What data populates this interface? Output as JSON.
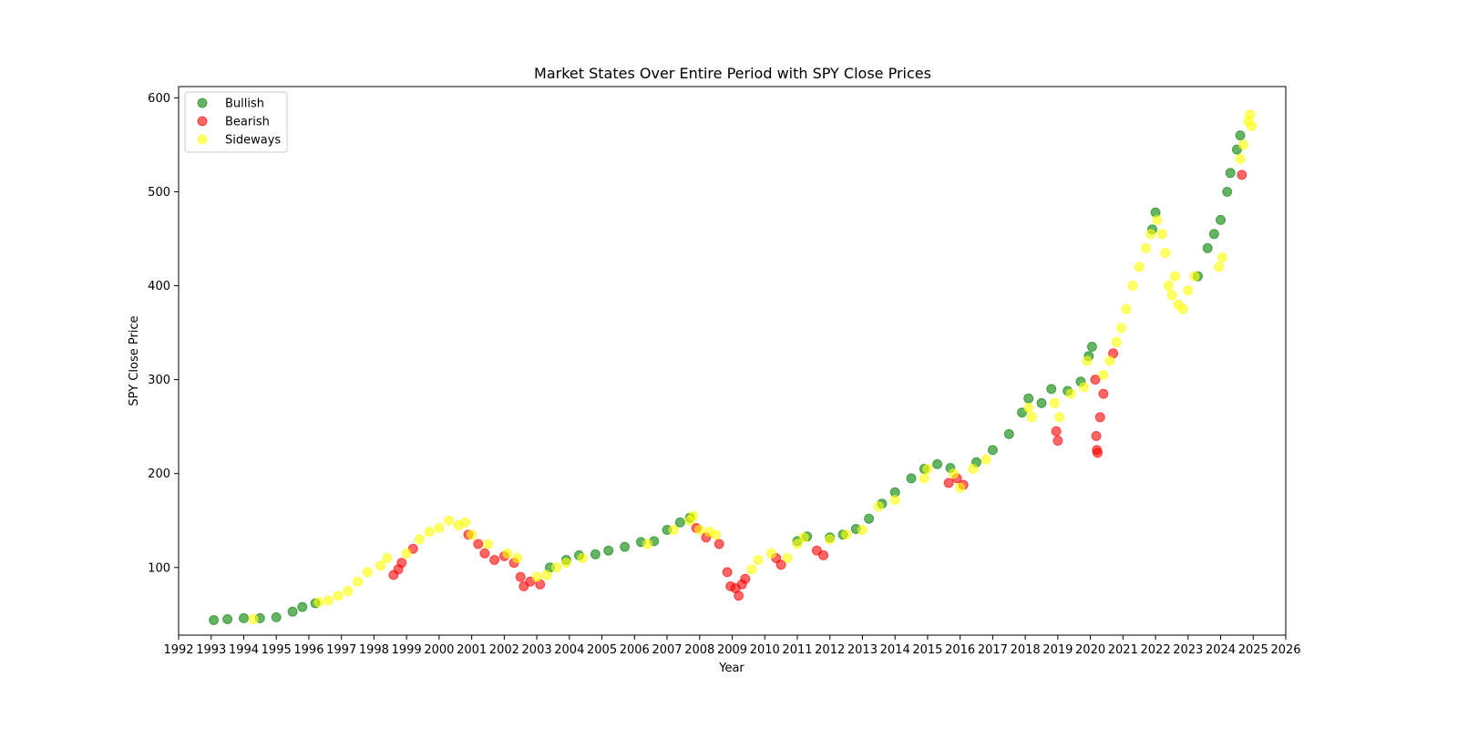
{
  "chart_data": {
    "type": "scatter",
    "title": "Market States Over Entire Period with SPY Close Prices",
    "xlabel": "Year",
    "ylabel": "SPY Close Price",
    "xlim": [
      1992,
      2026
    ],
    "ylim": [
      28,
      612
    ],
    "x_ticks": [
      "1992",
      "1993",
      "1994",
      "1995",
      "1996",
      "1997",
      "1998",
      "1999",
      "2000",
      "2001",
      "2002",
      "2003",
      "2004",
      "2005",
      "2006",
      "2007",
      "2008",
      "2009",
      "2010",
      "2011",
      "2012",
      "2013",
      "2014",
      "2015",
      "2016",
      "2017",
      "2018",
      "2019",
      "2020",
      "2021",
      "2022",
      "2023",
      "2024",
      "2025",
      "2026"
    ],
    "y_ticks": [
      100,
      200,
      300,
      400,
      500,
      600
    ],
    "grid": false,
    "legend_position": "top-left",
    "series": [
      {
        "name": "Bullish",
        "color": "#008000",
        "points": [
          [
            1993.08,
            44
          ],
          [
            1993.5,
            45
          ],
          [
            1994.0,
            46
          ],
          [
            1994.5,
            46
          ],
          [
            1995.0,
            47
          ],
          [
            1995.5,
            53
          ],
          [
            1995.8,
            58
          ],
          [
            1996.2,
            62
          ],
          [
            2003.4,
            100
          ],
          [
            2003.9,
            108
          ],
          [
            2004.3,
            113
          ],
          [
            2004.8,
            114
          ],
          [
            2005.2,
            118
          ],
          [
            2005.7,
            122
          ],
          [
            2006.2,
            127
          ],
          [
            2006.6,
            128
          ],
          [
            2007.0,
            140
          ],
          [
            2007.4,
            148
          ],
          [
            2007.7,
            153
          ],
          [
            2011.0,
            128
          ],
          [
            2011.3,
            133
          ],
          [
            2012.0,
            132
          ],
          [
            2012.4,
            135
          ],
          [
            2012.8,
            141
          ],
          [
            2013.2,
            152
          ],
          [
            2013.6,
            168
          ],
          [
            2014.0,
            180
          ],
          [
            2014.5,
            195
          ],
          [
            2014.9,
            205
          ],
          [
            2015.3,
            210
          ],
          [
            2015.7,
            206
          ],
          [
            2016.5,
            212
          ],
          [
            2017.0,
            225
          ],
          [
            2017.5,
            242
          ],
          [
            2017.9,
            265
          ],
          [
            2018.1,
            280
          ],
          [
            2018.5,
            275
          ],
          [
            2018.8,
            290
          ],
          [
            2019.3,
            288
          ],
          [
            2019.7,
            298
          ],
          [
            2019.95,
            325
          ],
          [
            2020.05,
            335
          ],
          [
            2021.9,
            460
          ],
          [
            2022.0,
            478
          ],
          [
            2023.3,
            410
          ],
          [
            2023.6,
            440
          ],
          [
            2023.8,
            455
          ],
          [
            2024.0,
            470
          ],
          [
            2024.2,
            500
          ],
          [
            2024.3,
            520
          ],
          [
            2024.5,
            545
          ],
          [
            2024.6,
            560
          ]
        ]
      },
      {
        "name": "Bearish",
        "color": "#ff0000",
        "points": [
          [
            1998.6,
            92
          ],
          [
            1998.75,
            98
          ],
          [
            1998.85,
            105
          ],
          [
            1999.2,
            120
          ],
          [
            2000.9,
            135
          ],
          [
            2001.2,
            125
          ],
          [
            2001.4,
            115
          ],
          [
            2001.7,
            108
          ],
          [
            2002.0,
            112
          ],
          [
            2002.3,
            105
          ],
          [
            2002.5,
            90
          ],
          [
            2002.6,
            80
          ],
          [
            2002.8,
            85
          ],
          [
            2003.1,
            82
          ],
          [
            2007.9,
            142
          ],
          [
            2008.2,
            132
          ],
          [
            2008.6,
            125
          ],
          [
            2008.85,
            95
          ],
          [
            2008.95,
            80
          ],
          [
            2009.1,
            78
          ],
          [
            2009.2,
            70
          ],
          [
            2009.3,
            82
          ],
          [
            2009.4,
            88
          ],
          [
            2010.35,
            110
          ],
          [
            2010.5,
            103
          ],
          [
            2011.6,
            118
          ],
          [
            2011.8,
            113
          ],
          [
            2015.65,
            190
          ],
          [
            2015.9,
            195
          ],
          [
            2016.1,
            188
          ],
          [
            2018.95,
            245
          ],
          [
            2019.0,
            235
          ],
          [
            2020.15,
            300
          ],
          [
            2020.18,
            240
          ],
          [
            2020.2,
            225
          ],
          [
            2020.22,
            222
          ],
          [
            2020.3,
            260
          ],
          [
            2020.4,
            285
          ],
          [
            2020.7,
            328
          ],
          [
            2024.65,
            518
          ]
        ]
      },
      {
        "name": "Sideways",
        "color": "#ffff00",
        "points": [
          [
            1994.3,
            45
          ],
          [
            1996.3,
            63
          ],
          [
            1996.6,
            65
          ],
          [
            1996.9,
            70
          ],
          [
            1997.2,
            75
          ],
          [
            1997.5,
            85
          ],
          [
            1997.8,
            95
          ],
          [
            1998.2,
            102
          ],
          [
            1998.4,
            110
          ],
          [
            1999.0,
            115
          ],
          [
            1999.4,
            130
          ],
          [
            1999.7,
            138
          ],
          [
            2000.0,
            142
          ],
          [
            2000.3,
            150
          ],
          [
            2000.6,
            145
          ],
          [
            2000.8,
            148
          ],
          [
            2001.0,
            135
          ],
          [
            2001.5,
            125
          ],
          [
            2002.1,
            115
          ],
          [
            2002.4,
            110
          ],
          [
            2003.0,
            90
          ],
          [
            2003.3,
            92
          ],
          [
            2003.6,
            100
          ],
          [
            2003.9,
            105
          ],
          [
            2004.4,
            110
          ],
          [
            2006.4,
            125
          ],
          [
            2007.2,
            140
          ],
          [
            2007.7,
            150
          ],
          [
            2007.8,
            155
          ],
          [
            2008.0,
            140
          ],
          [
            2008.3,
            138
          ],
          [
            2008.5,
            135
          ],
          [
            2009.6,
            98
          ],
          [
            2009.8,
            108
          ],
          [
            2010.2,
            115
          ],
          [
            2010.7,
            110
          ],
          [
            2011.0,
            125
          ],
          [
            2011.2,
            132
          ],
          [
            2012.0,
            130
          ],
          [
            2012.5,
            135
          ],
          [
            2013.0,
            140
          ],
          [
            2013.5,
            165
          ],
          [
            2014.0,
            172
          ],
          [
            2014.9,
            195
          ],
          [
            2015.0,
            205
          ],
          [
            2015.8,
            200
          ],
          [
            2016.0,
            185
          ],
          [
            2016.4,
            205
          ],
          [
            2016.8,
            215
          ],
          [
            2018.1,
            270
          ],
          [
            2018.2,
            260
          ],
          [
            2018.9,
            275
          ],
          [
            2019.05,
            260
          ],
          [
            2019.4,
            285
          ],
          [
            2019.8,
            292
          ],
          [
            2019.9,
            320
          ],
          [
            2020.4,
            305
          ],
          [
            2020.6,
            320
          ],
          [
            2020.8,
            340
          ],
          [
            2020.95,
            355
          ],
          [
            2021.1,
            375
          ],
          [
            2021.3,
            400
          ],
          [
            2021.5,
            420
          ],
          [
            2021.7,
            440
          ],
          [
            2021.85,
            455
          ],
          [
            2022.05,
            470
          ],
          [
            2022.2,
            455
          ],
          [
            2022.3,
            435
          ],
          [
            2022.4,
            400
          ],
          [
            2022.5,
            390
          ],
          [
            2022.6,
            410
          ],
          [
            2022.7,
            380
          ],
          [
            2022.85,
            375
          ],
          [
            2023.0,
            395
          ],
          [
            2023.2,
            410
          ],
          [
            2023.95,
            420
          ],
          [
            2024.05,
            430
          ],
          [
            2024.6,
            535
          ],
          [
            2024.7,
            550
          ],
          [
            2024.85,
            575
          ],
          [
            2024.9,
            582
          ],
          [
            2024.95,
            570
          ]
        ]
      }
    ]
  }
}
